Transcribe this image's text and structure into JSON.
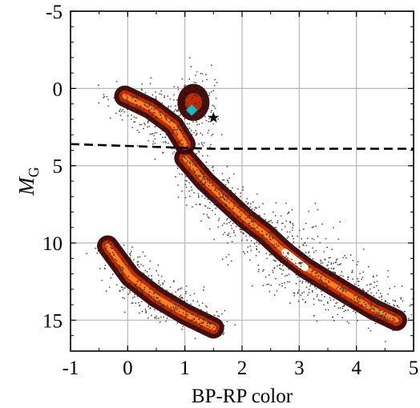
{
  "chart_data": {
    "type": "scatter",
    "title": "",
    "xlabel": "BP-RP color",
    "ylabel_main": "M",
    "ylabel_sub": "G",
    "xlim": [
      -1,
      5
    ],
    "ylim": [
      17,
      -5
    ],
    "y_inverted": true,
    "grid": true,
    "legend": "none",
    "x_ticks": [
      -1,
      0,
      1,
      2,
      3,
      4,
      5
    ],
    "x_tick_labels": [
      "-1",
      "0",
      "1",
      "2",
      "3",
      "4",
      "5"
    ],
    "y_ticks": [
      -5,
      0,
      5,
      10,
      15
    ],
    "y_tick_labels": [
      "-5",
      "0",
      "5",
      "10",
      "15"
    ],
    "colors": {
      "density_low": "#3a0000",
      "density_mid": "#d03000",
      "density_high": "#fff7ea",
      "scatter_point": "#3a2a2a"
    },
    "density_features": [
      {
        "name": "main sequence",
        "path": [
          [
            1.0,
            4.5
          ],
          [
            1.35,
            6.0
          ],
          [
            1.7,
            7.2
          ],
          [
            2.05,
            8.4
          ],
          [
            2.4,
            9.4
          ],
          [
            2.75,
            10.6
          ],
          [
            3.1,
            11.6
          ],
          [
            3.45,
            12.4
          ],
          [
            3.85,
            13.3
          ],
          [
            4.3,
            14.3
          ],
          [
            4.7,
            15.0
          ]
        ],
        "widths": [
          0.12,
          0.13,
          0.16,
          0.2,
          0.26,
          0.3,
          0.3,
          0.26,
          0.22,
          0.18,
          0.12
        ],
        "peak_segment": [
          2.55,
          3.2
        ]
      },
      {
        "name": "white dwarf sequence",
        "path": [
          [
            -0.35,
            10.2
          ],
          [
            0.05,
            12.2
          ],
          [
            0.5,
            13.5
          ],
          [
            1.0,
            14.6
          ],
          [
            1.5,
            15.5
          ]
        ],
        "widths": [
          0.1,
          0.16,
          0.18,
          0.16,
          0.1
        ]
      },
      {
        "name": "turnoff and giant branch",
        "path": [
          [
            -0.05,
            0.5
          ],
          [
            0.4,
            1.3
          ],
          [
            0.8,
            2.4
          ],
          [
            1.0,
            3.6
          ]
        ],
        "widths": [
          0.14,
          0.22,
          0.18,
          0.14
        ]
      },
      {
        "name": "red clump",
        "center": [
          1.15,
          0.9
        ],
        "radius": [
          0.2,
          1.0
        ]
      }
    ],
    "reference_line": {
      "style": "dashed",
      "points": [
        [
          -1,
          3.6
        ],
        [
          1.45,
          3.9
        ],
        [
          5,
          3.9
        ]
      ]
    },
    "markers": [
      {
        "name": "cyan diamond",
        "x": 1.12,
        "y": 1.4,
        "symbol": "diamond",
        "color": "#27b5c4"
      },
      {
        "name": "black star",
        "x": 1.5,
        "y": 1.9,
        "symbol": "star",
        "color": "#000000"
      }
    ]
  }
}
